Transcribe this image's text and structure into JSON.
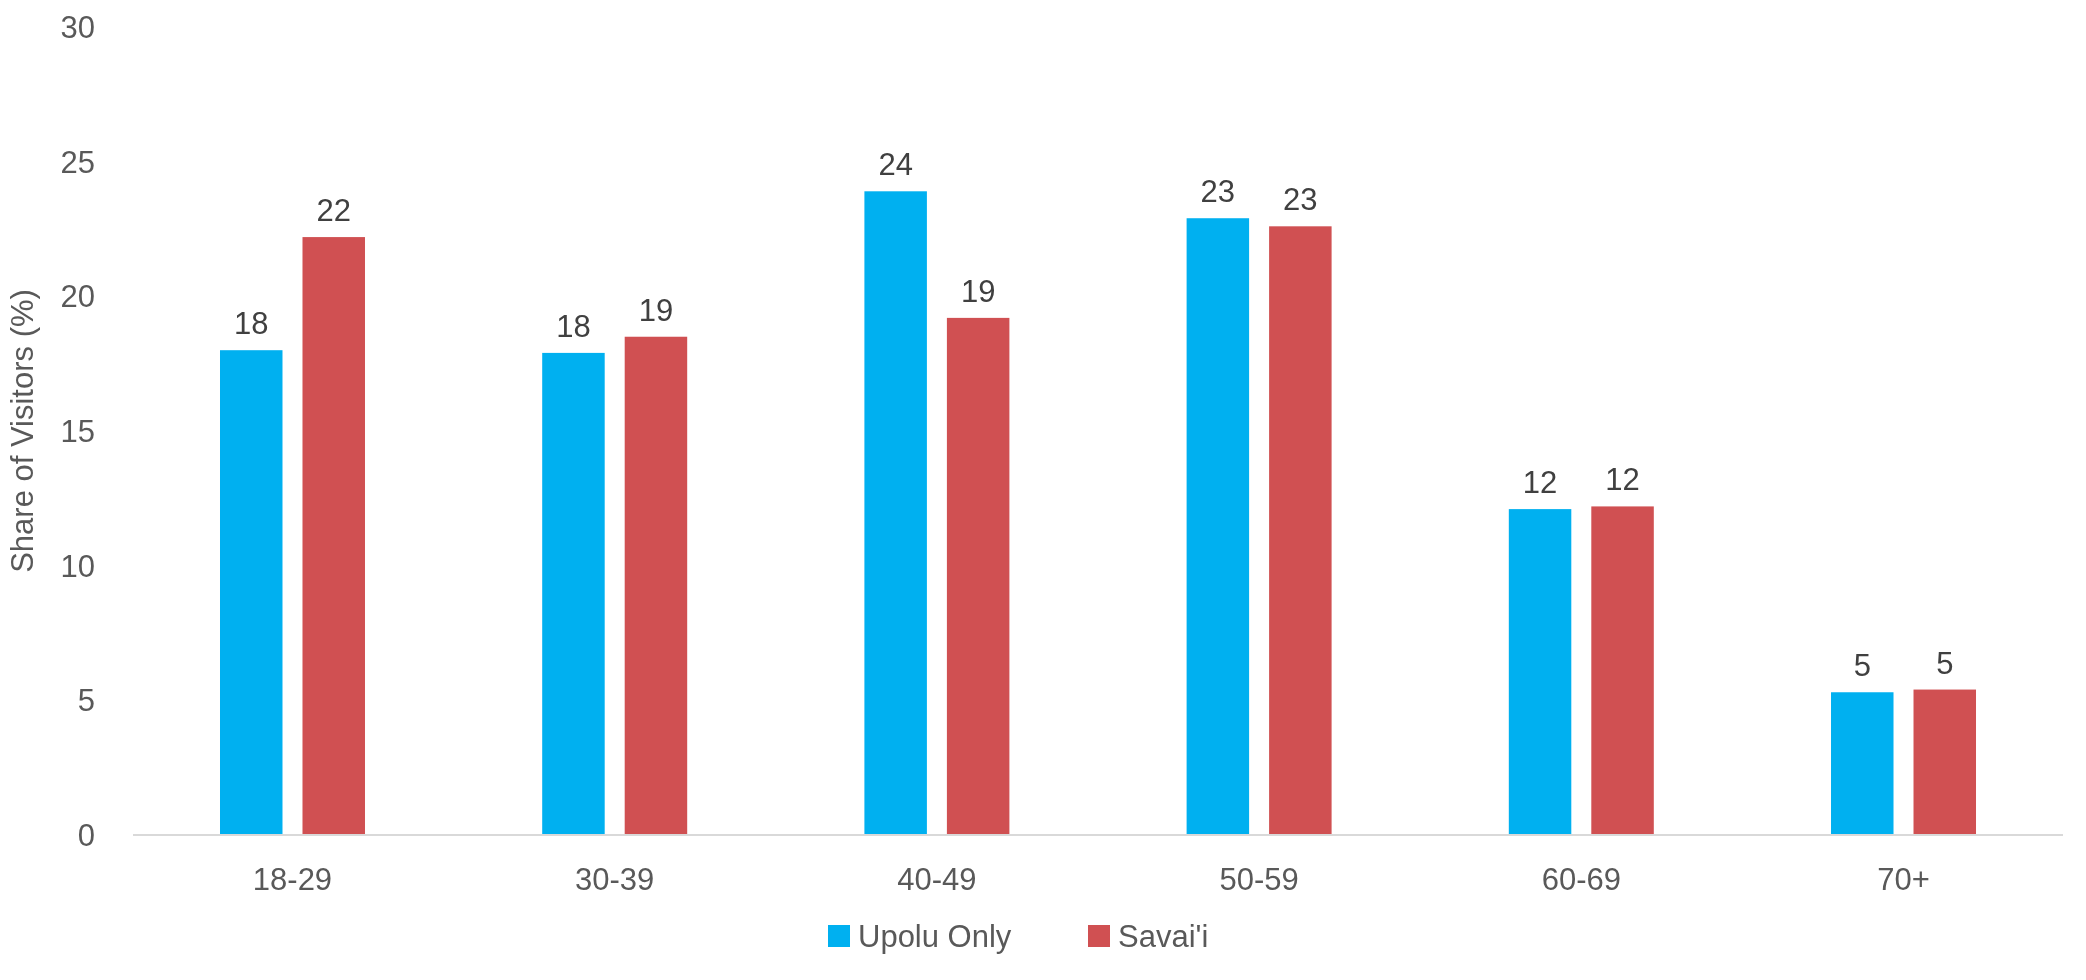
{
  "chart_data": {
    "type": "bar",
    "ylabel": "Share of Visitors (%)",
    "categories": [
      "18-29",
      "30-39",
      "40-49",
      "50-59",
      "60-69",
      "70+"
    ],
    "series": [
      {
        "name": "Upolu Only",
        "color": "#00b0f0",
        "values": [
          18.0,
          17.9,
          23.9,
          22.9,
          12.1,
          5.3
        ],
        "value_labels": [
          "18",
          "18",
          "24",
          "23",
          "12",
          "5"
        ]
      },
      {
        "name": "Savai'i",
        "color": "#d05052",
        "values": [
          22.2,
          18.5,
          19.2,
          22.6,
          12.2,
          5.4
        ],
        "value_labels": [
          "22",
          "19",
          "19",
          "23",
          "12",
          "5"
        ]
      }
    ],
    "ylim": [
      0,
      30
    ],
    "yticks": [
      0,
      5,
      10,
      15,
      20,
      25,
      30
    ],
    "grid": false,
    "legend": "bottom"
  }
}
